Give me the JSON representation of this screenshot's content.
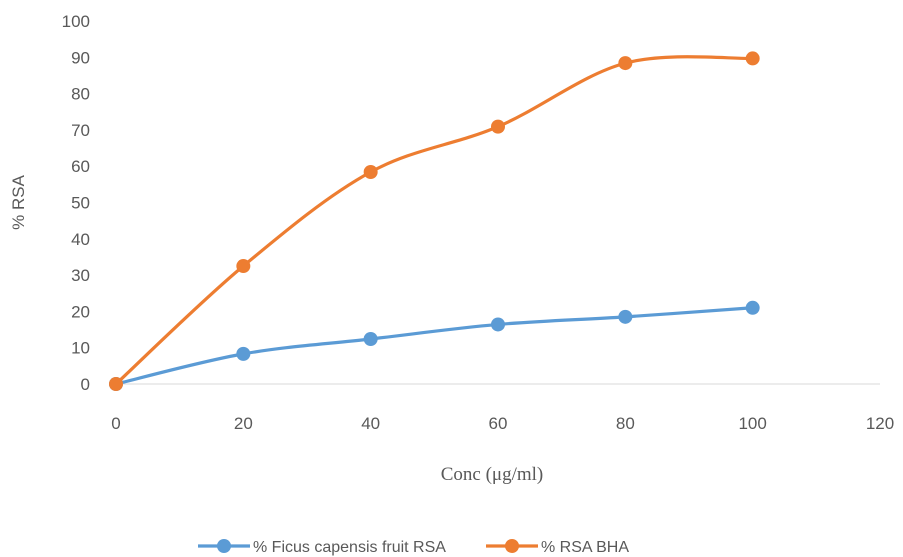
{
  "chart_data": {
    "type": "line",
    "xlabel": "Conc (μg/ml)",
    "ylabel": "% RSA",
    "xlim": [
      0,
      120
    ],
    "ylim": [
      0,
      100
    ],
    "xticks": [
      0,
      20,
      40,
      60,
      80,
      100,
      120
    ],
    "yticks": [
      0,
      10,
      20,
      30,
      40,
      50,
      60,
      70,
      80,
      90,
      100
    ],
    "smooth": true,
    "grid": false,
    "legend_position": "bottom",
    "series": [
      {
        "name": "% Ficus capensis fruit RSA",
        "color": "#5B9BD5",
        "x": [
          0,
          20,
          40,
          60,
          80,
          100
        ],
        "y": [
          0,
          8.3,
          12.4,
          16.4,
          18.5,
          21.0
        ]
      },
      {
        "name": "% RSA BHA",
        "color": "#ED7D31",
        "x": [
          0,
          20,
          40,
          60,
          80,
          100
        ],
        "y": [
          0,
          32.5,
          58.4,
          70.9,
          88.4,
          89.7
        ]
      }
    ]
  }
}
